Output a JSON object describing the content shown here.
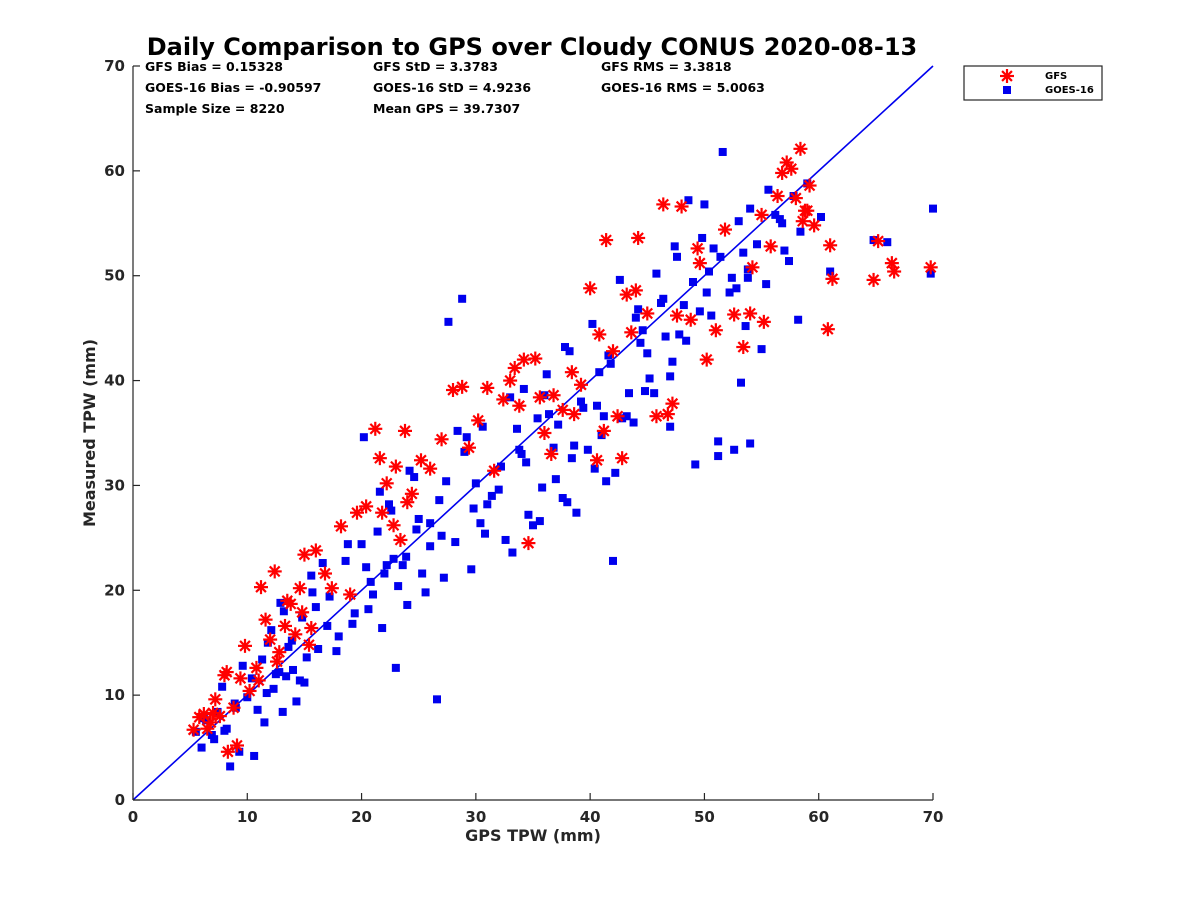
{
  "chart_data": {
    "type": "scatter",
    "title": "Daily Comparison to GPS over Cloudy CONUS 2020-08-13",
    "xlabel": "GPS TPW (mm)",
    "ylabel": "Measured TPW (mm)",
    "xlim": [
      0,
      70
    ],
    "ylim": [
      0,
      70
    ],
    "xticks": [
      0,
      10,
      20,
      30,
      40,
      50,
      60,
      70
    ],
    "yticks": [
      0,
      10,
      20,
      30,
      40,
      50,
      60,
      70
    ],
    "xtick_labels": [
      "0",
      "10",
      "20",
      "30",
      "40",
      "50",
      "60",
      "70"
    ],
    "ytick_labels": [
      "0",
      "10",
      "20",
      "30",
      "40",
      "50",
      "60",
      "70"
    ],
    "grid": false,
    "legend_placement": "outside-top-right",
    "one_to_one_line": {
      "from": [
        0,
        0
      ],
      "to": [
        70,
        70
      ],
      "color": "#0000ee"
    },
    "annotations": [
      "GFS Bias = 0.15328",
      "GFS StD = 3.3783",
      "GFS RMS = 3.3818",
      "GOES-16 Bias = -0.90597",
      "GOES-16 StD = 4.9236",
      "GOES-16 RMS = 5.0063",
      "Sample Size = 8220",
      "Mean GPS = 39.7307"
    ],
    "series": [
      {
        "name": "GFS",
        "marker": "asterisk",
        "color": "#ff0000",
        "x": [
          5.3,
          5.8,
          6.2,
          6.8,
          7.2,
          7.6,
          8.0,
          8.3,
          8.8,
          9.1,
          9.4,
          8.2,
          7.0,
          6.5,
          9.8,
          10.2,
          10.8,
          11.2,
          11.6,
          12.0,
          12.4,
          12.8,
          13.3,
          13.8,
          14.2,
          14.6,
          15.0,
          15.6,
          16.0,
          11.0,
          12.6,
          13.5,
          14.8,
          15.4,
          16.8,
          17.4,
          18.2,
          19.0,
          19.6,
          20.4,
          21.2,
          21.6,
          22.2,
          23.0,
          23.8,
          24.4,
          25.2,
          26.0,
          21.8,
          22.8,
          23.4,
          24.0,
          27.0,
          28.0,
          28.8,
          29.4,
          30.2,
          31.0,
          31.6,
          32.4,
          33.0,
          33.8,
          34.6,
          35.2,
          36.0,
          36.8,
          37.6,
          38.4,
          39.2,
          40.0,
          40.8,
          41.4,
          42.0,
          42.8,
          43.6,
          44.2,
          45.0,
          45.8,
          46.4,
          47.2,
          48.0,
          48.8,
          49.4,
          50.2,
          51.0,
          51.8,
          52.6,
          53.4,
          54.2,
          55.0,
          55.8,
          56.4,
          57.2,
          58.0,
          58.6,
          59.2,
          56.8,
          57.6,
          58.4,
          59.0,
          55.2,
          54.0,
          60.8,
          61.0,
          61.2,
          64.8,
          65.2,
          66.4,
          66.6,
          69.8,
          41.2,
          42.4,
          44.0,
          38.6,
          40.6,
          34.2,
          35.6,
          36.6,
          33.4,
          46.8,
          43.2,
          47.6,
          49.6,
          58.8,
          59.6
        ],
        "y": [
          6.7,
          7.9,
          8.2,
          7.4,
          9.6,
          8.0,
          11.9,
          4.6,
          8.8,
          5.2,
          11.6,
          12.2,
          8.3,
          6.8,
          14.7,
          10.4,
          12.6,
          20.3,
          17.2,
          15.3,
          21.8,
          14.1,
          16.6,
          18.7,
          15.8,
          20.2,
          23.4,
          16.4,
          23.8,
          11.4,
          13.2,
          19.0,
          17.9,
          14.8,
          21.6,
          20.2,
          26.1,
          19.6,
          27.4,
          28.0,
          35.4,
          32.6,
          30.2,
          31.8,
          35.2,
          29.2,
          32.4,
          31.6,
          27.4,
          26.2,
          24.8,
          28.4,
          34.4,
          39.1,
          39.4,
          33.6,
          36.2,
          39.3,
          31.4,
          38.2,
          40.0,
          37.6,
          24.5,
          42.1,
          35.0,
          38.6,
          37.2,
          40.8,
          39.6,
          48.8,
          44.4,
          53.4,
          42.8,
          32.6,
          44.6,
          53.6,
          46.4,
          36.6,
          56.8,
          37.8,
          56.6,
          45.8,
          52.6,
          42.0,
          44.8,
          54.4,
          46.3,
          43.2,
          50.8,
          55.8,
          52.8,
          57.6,
          60.8,
          57.4,
          55.2,
          58.6,
          59.8,
          60.2,
          62.1,
          56.2,
          45.6,
          46.4,
          44.9,
          52.9,
          49.7,
          49.6,
          53.3,
          51.2,
          50.4,
          50.8,
          35.2,
          36.6,
          48.6,
          36.8,
          32.4,
          42.0,
          38.4,
          33.0,
          41.2,
          36.8,
          48.2,
          46.2,
          51.2,
          56.2,
          54.8
        ]
      },
      {
        "name": "GOES-16",
        "marker": "square",
        "color": "#0000ee",
        "x": [
          5.5,
          6.0,
          6.4,
          6.9,
          7.4,
          7.8,
          8.2,
          8.5,
          8.9,
          9.3,
          7.1,
          6.2,
          9.6,
          10.0,
          10.4,
          10.9,
          11.3,
          11.7,
          12.1,
          12.5,
          12.9,
          13.4,
          13.9,
          14.3,
          14.8,
          15.2,
          15.7,
          16.2,
          16.6,
          11.5,
          12.3,
          13.1,
          14.0,
          15.0,
          17.2,
          17.8,
          18.6,
          19.2,
          20.0,
          20.6,
          21.4,
          22.0,
          22.6,
          23.2,
          23.9,
          24.6,
          25.3,
          26.0,
          26.8,
          18.0,
          19.4,
          21.0,
          23.6,
          24.8,
          27.4,
          28.2,
          29.0,
          29.8,
          30.6,
          31.4,
          32.2,
          33.0,
          33.8,
          34.6,
          35.4,
          36.2,
          37.0,
          37.8,
          38.6,
          39.4,
          40.2,
          41.0,
          41.8,
          42.6,
          43.4,
          44.2,
          45.0,
          45.8,
          46.6,
          47.4,
          48.2,
          49.0,
          49.8,
          50.6,
          51.4,
          52.2,
          53.0,
          53.8,
          54.6,
          55.4,
          56.2,
          57.0,
          57.8,
          58.4,
          59.0,
          51.6,
          52.8,
          53.6,
          50.4,
          48.6,
          47.8,
          46.4,
          45.2,
          44.0,
          42.8,
          41.6,
          40.4,
          39.2,
          38.0,
          36.8,
          35.6,
          34.4,
          33.2,
          32.0,
          30.8,
          29.6,
          28.4,
          27.2,
          26.0,
          25.0,
          24.0,
          22.8,
          21.8,
          20.8,
          31.0,
          32.6,
          34.0,
          35.8,
          37.2,
          38.8,
          40.6,
          42.2,
          43.8,
          45.6,
          47.2,
          48.4,
          49.6,
          50.8,
          52.4,
          54.0,
          55.6,
          56.6,
          57.4,
          58.2,
          55.0,
          53.2,
          51.2,
          49.2,
          36.4,
          37.6,
          39.8,
          41.4,
          42.0,
          35.0,
          34.2,
          38.2,
          40.8,
          44.6,
          46.2,
          47.6,
          50.0,
          53.8,
          60.2,
          61.0,
          66.0,
          69.8,
          70.0,
          64.8,
          51.2,
          52.6,
          54.0,
          47.0,
          44.8,
          43.2,
          28.8,
          27.6,
          29.2,
          30.4,
          21.6,
          20.2,
          23.0,
          26.6,
          25.6,
          22.2,
          17.0,
          16.0,
          14.6,
          13.6,
          12.8,
          9.0,
          8.0,
          10.6,
          11.8,
          13.2,
          15.6,
          18.8,
          20.4,
          22.4,
          24.2,
          27.0,
          30.0,
          33.6,
          36.0,
          38.4,
          41.2,
          44.4,
          47.0,
          50.2,
          53.4,
          56.8
        ],
        "y": [
          6.5,
          5.0,
          7.6,
          6.2,
          8.4,
          10.8,
          6.8,
          3.2,
          9.2,
          4.6,
          5.8,
          7.8,
          12.8,
          9.8,
          11.6,
          8.6,
          13.4,
          10.2,
          16.2,
          12.0,
          18.8,
          11.8,
          15.2,
          9.4,
          17.4,
          13.6,
          19.8,
          14.4,
          22.6,
          7.4,
          10.6,
          8.4,
          12.4,
          11.2,
          19.4,
          14.2,
          22.8,
          16.8,
          24.4,
          18.2,
          25.6,
          21.6,
          27.6,
          20.4,
          23.2,
          30.8,
          21.6,
          26.4,
          28.6,
          15.6,
          17.8,
          19.6,
          22.4,
          25.8,
          30.4,
          24.6,
          33.2,
          27.8,
          35.6,
          29.0,
          31.8,
          38.4,
          33.4,
          27.2,
          36.4,
          40.6,
          30.6,
          43.2,
          33.8,
          37.4,
          45.4,
          34.8,
          41.6,
          49.6,
          38.8,
          46.8,
          42.6,
          50.2,
          44.2,
          52.8,
          47.2,
          49.4,
          53.6,
          46.2,
          51.8,
          48.4,
          55.2,
          50.6,
          53.0,
          49.2,
          55.8,
          52.4,
          57.6,
          54.2,
          58.8,
          61.8,
          48.8,
          45.2,
          50.4,
          57.2,
          44.4,
          47.8,
          40.2,
          46.0,
          36.4,
          42.4,
          31.6,
          38.0,
          28.4,
          33.6,
          26.6,
          32.2,
          23.6,
          29.6,
          25.4,
          22.0,
          35.2,
          21.2,
          24.2,
          26.8,
          18.6,
          23.0,
          16.4,
          20.8,
          28.2,
          24.8,
          33.0,
          29.8,
          35.8,
          27.4,
          37.6,
          31.2,
          36.0,
          38.8,
          41.8,
          43.8,
          46.6,
          52.6,
          49.8,
          56.4,
          58.2,
          55.4,
          51.4,
          45.8,
          43.0,
          39.8,
          34.2,
          32.0,
          36.8,
          28.8,
          33.4,
          30.4,
          22.8,
          26.2,
          39.2,
          42.8,
          40.8,
          44.8,
          47.4,
          51.8,
          56.8,
          49.8,
          55.6,
          50.4,
          53.2,
          50.2,
          56.4,
          53.4,
          32.8,
          33.4,
          34.0,
          35.6,
          39.0,
          36.6,
          47.8,
          45.6,
          34.6,
          26.4,
          29.4,
          34.6,
          12.6,
          9.6,
          19.8,
          22.4,
          16.6,
          18.4,
          11.4,
          14.6,
          12.2,
          8.8,
          6.6,
          4.2,
          15.0,
          18.0,
          21.4,
          24.4,
          22.2,
          28.2,
          31.4,
          25.2,
          30.2,
          35.4,
          38.6,
          32.6,
          36.6,
          43.6,
          40.4,
          48.4,
          52.2,
          55.0
        ]
      }
    ]
  }
}
